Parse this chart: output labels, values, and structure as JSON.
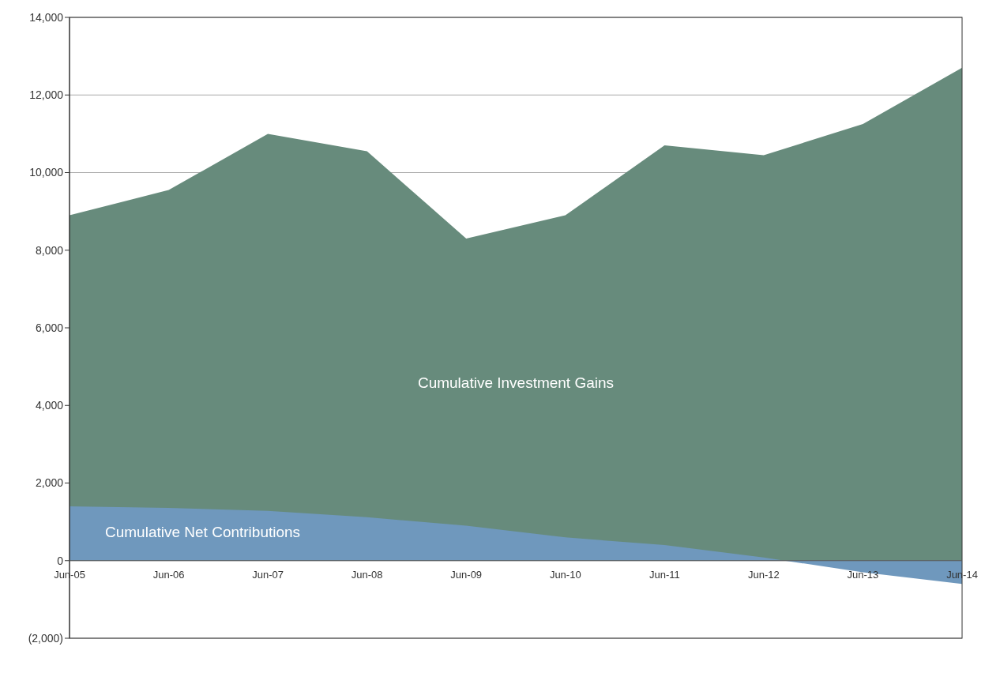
{
  "chart_data": {
    "type": "area",
    "categories": [
      "Jun-05",
      "Jun-06",
      "Jun-07",
      "Jun-08",
      "Jun-09",
      "Jun-10",
      "Jun-11",
      "Jun-12",
      "Jun-13",
      "Jun-14"
    ],
    "series": [
      {
        "name": "Cumulative Investment Gains",
        "color": "#678b7c",
        "values": [
          8900,
          9550,
          11000,
          10550,
          8300,
          8900,
          10700,
          10450,
          11250,
          12700
        ]
      },
      {
        "name": "Cumulative Net Contributions",
        "color": "#6f98bd",
        "values": [
          1400,
          1360,
          1280,
          1120,
          900,
          600,
          400,
          80,
          -300,
          -600
        ]
      }
    ],
    "ylim": [
      -2000,
      14000
    ],
    "yticks": [
      {
        "value": -2000,
        "label": "(2,000)"
      },
      {
        "value": 0,
        "label": "0"
      },
      {
        "value": 2000,
        "label": "2,000"
      },
      {
        "value": 4000,
        "label": "4,000"
      },
      {
        "value": 6000,
        "label": "6,000"
      },
      {
        "value": 8000,
        "label": "8,000"
      },
      {
        "value": 10000,
        "label": "10,000"
      },
      {
        "value": 12000,
        "label": "12,000"
      },
      {
        "value": 14000,
        "label": "14,000"
      }
    ],
    "grid": "y"
  }
}
